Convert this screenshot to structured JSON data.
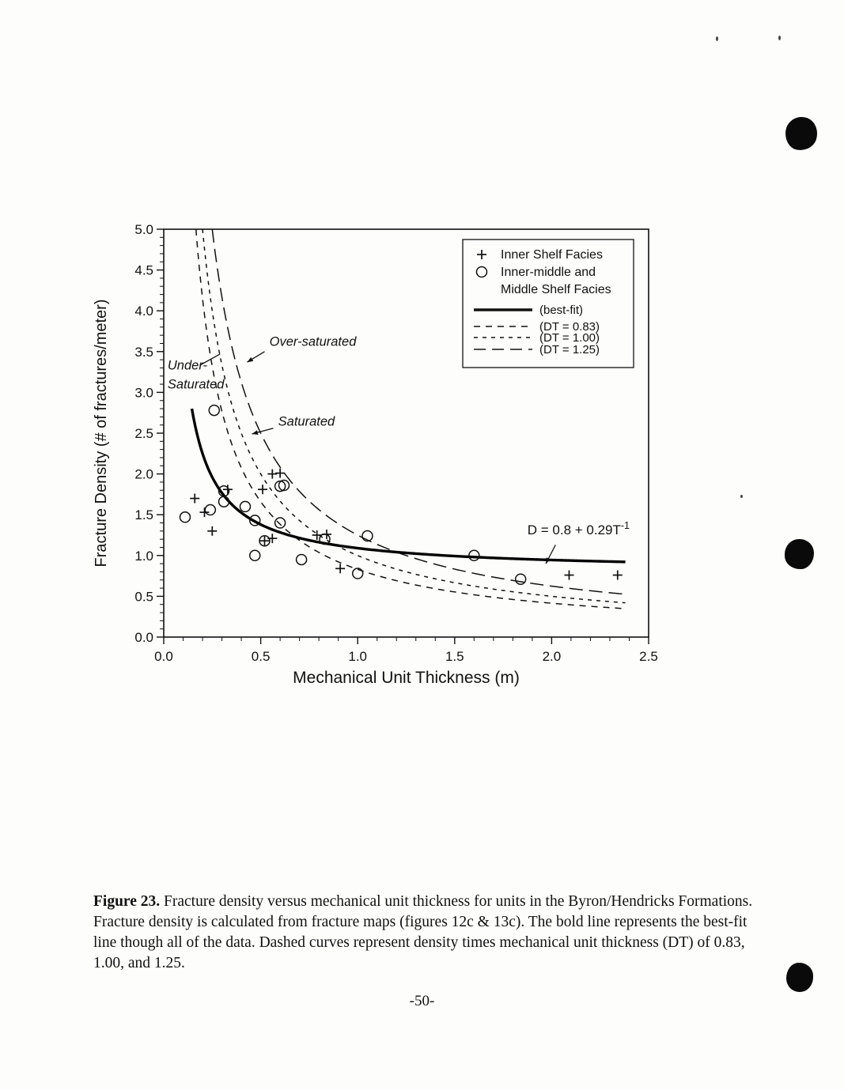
{
  "page": {
    "number": "-50-"
  },
  "caption": {
    "label": "Figure 23.",
    "text": "Fracture density versus mechanical unit thickness for units in the Byron/Hendricks Formations.  Fracture density is calculated from fracture maps (figures 12c & 13c).  The bold line represents the best-fit line though all of the data.  Dashed curves represent density times mechanical unit thickness (DT) of 0.83, 1.00, and 1.25."
  },
  "chart_data": {
    "type": "scatter",
    "title": "",
    "xlabel": "Mechanical Unit Thickness (m)",
    "ylabel": "Fracture Density (# of fractures/meter)",
    "xlim": [
      0.0,
      2.5
    ],
    "ylim": [
      0.0,
      5.0
    ],
    "x_major_step": 0.5,
    "x_minor_step": 0.1,
    "y_major_step": 0.5,
    "y_minor_step": 0.1,
    "x_tick_labels": [
      "0.0",
      "0.5",
      "1.0",
      "1.5",
      "2.0",
      "2.5"
    ],
    "y_tick_labels": [
      "0.0",
      "0.5",
      "1.0",
      "1.5",
      "2.0",
      "2.5",
      "3.0",
      "3.5",
      "4.0",
      "4.5",
      "5.0"
    ],
    "grid": false,
    "legend_position": "top-right",
    "series": [
      {
        "name": "Inner Shelf Facies",
        "marker": "plus",
        "points": [
          [
            0.16,
            1.7
          ],
          [
            0.21,
            1.53
          ],
          [
            0.25,
            1.3
          ],
          [
            0.33,
            1.81
          ],
          [
            0.51,
            1.81
          ],
          [
            0.56,
            2.0
          ],
          [
            0.6,
            2.01
          ],
          [
            0.52,
            1.18
          ],
          [
            0.56,
            1.21
          ],
          [
            0.79,
            1.25
          ],
          [
            0.84,
            1.26
          ],
          [
            0.91,
            0.84
          ],
          [
            2.09,
            0.76
          ],
          [
            2.34,
            0.76
          ]
        ]
      },
      {
        "name": "Inner-middle and Middle Shelf Facies",
        "marker": "circle",
        "points": [
          [
            0.26,
            2.78
          ],
          [
            0.11,
            1.47
          ],
          [
            0.24,
            1.56
          ],
          [
            0.31,
            1.79
          ],
          [
            0.31,
            1.66
          ],
          [
            0.42,
            1.6
          ],
          [
            0.47,
            1.43
          ],
          [
            0.47,
            1.0
          ],
          [
            0.6,
            1.85
          ],
          [
            0.62,
            1.86
          ],
          [
            0.52,
            1.18
          ],
          [
            0.6,
            1.4
          ],
          [
            0.71,
            0.95
          ],
          [
            0.83,
            1.2
          ],
          [
            1.05,
            1.24
          ],
          [
            1.0,
            0.78
          ],
          [
            1.6,
            1.0
          ],
          [
            1.84,
            0.71
          ]
        ]
      }
    ],
    "best_fit": {
      "label": "(best-fit)",
      "intercept": 0.8,
      "coef": 0.29,
      "equation_base": "D = 0.8 + 0.29T",
      "equation_sup": "-1",
      "x_start": 0.145,
      "x_end": 2.38
    },
    "dt_curves": [
      {
        "label": "(DT = 0.83)",
        "dt": 0.83,
        "dash": "short",
        "x_end": 2.38
      },
      {
        "label": "(DT = 1.00)",
        "dt": 1.0,
        "dash": "short2",
        "x_end": 2.38
      },
      {
        "label": "(DT = 1.25)",
        "dt": 1.25,
        "dash": "long",
        "x_end": 2.38
      }
    ],
    "legend": {
      "entries": [
        {
          "marker": "plus",
          "lines": [
            "Inner Shelf Facies"
          ]
        },
        {
          "marker": "circle",
          "lines": [
            "Inner-middle and",
            "Middle Shelf Facies"
          ]
        },
        {
          "line": "solid-bold",
          "lines": [
            "(best-fit)"
          ]
        },
        {
          "line": "dash-short",
          "lines": [
            "(DT = 0.83)"
          ]
        },
        {
          "line": "dash-short2",
          "lines": [
            "(DT = 1.00)"
          ]
        },
        {
          "line": "dash-long",
          "lines": [
            "(DT = 1.25)"
          ]
        }
      ]
    },
    "annotations": [
      {
        "text": "Over-saturated",
        "x": 0.545,
        "y": 3.57,
        "italic": true,
        "arrow": {
          "x1": 0.52,
          "y1": 3.5,
          "x2": 0.43,
          "y2": 3.37,
          "head": true
        }
      },
      {
        "text": "Under-",
        "text2": "Saturated",
        "x": 0.02,
        "y": 3.28,
        "italic": true,
        "arrow": {
          "x1": 0.185,
          "y1": 3.33,
          "x2": 0.29,
          "y2": 3.47,
          "head": false
        }
      },
      {
        "text": "Saturated",
        "x": 0.59,
        "y": 2.59,
        "italic": true,
        "arrow": {
          "x1": 0.565,
          "y1": 2.56,
          "x2": 0.455,
          "y2": 2.49,
          "head": true
        }
      },
      {
        "text": "D = 0.8 + 0.29T",
        "sup": "-1",
        "x": 1.875,
        "y": 1.26,
        "italic": false,
        "arrow": {
          "x1": 2.02,
          "y1": 1.13,
          "x2": 1.97,
          "y2": 0.9,
          "head": true
        }
      }
    ]
  }
}
